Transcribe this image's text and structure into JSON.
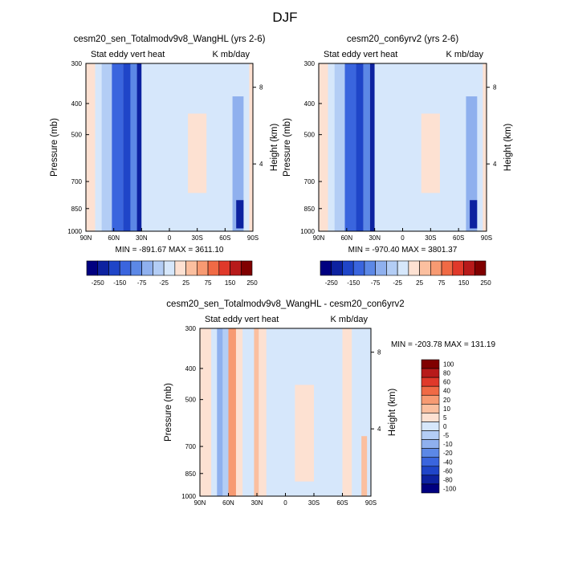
{
  "figure_title": "DJF",
  "chart_data": [
    {
      "type": "heatmap",
      "title": "cesm20_sen_Totalmodv9v8_WangHL (yrs 2-6)",
      "subtitle_left": "Stat eddy vert heat",
      "subtitle_right": "K mb/day",
      "ylabel": "Pressure (mb)",
      "ylabel_right": "Height (km)",
      "x_ticks": [
        "90N",
        "60N",
        "30N",
        "0",
        "30S",
        "60S",
        "90S"
      ],
      "y_ticks": [
        "300",
        "400",
        "500",
        "700",
        "850",
        "1000"
      ],
      "y_values": [
        300,
        400,
        500,
        700,
        850,
        1000
      ],
      "height_ticks": [
        "8",
        "4"
      ],
      "height_pressures": [
        356,
        617
      ],
      "stats": "MIN = -891.67  MAX = 3611.10",
      "colorbar_labels": [
        "-250",
        "-150",
        "-75",
        "-25",
        "25",
        "75",
        "150",
        "250"
      ],
      "columns": [
        {
          "lat": -90,
          "lat2": -80,
          "p_top": 300,
          "v": 1,
          "p_low": 1000
        },
        {
          "lat": -80,
          "lat2": -73,
          "p_top": 300,
          "v": -1
        },
        {
          "lat": -73,
          "lat2": -62,
          "p_top": 300,
          "v": -2
        },
        {
          "lat": -62,
          "lat2": -50,
          "p_top": 300,
          "v": -5
        },
        {
          "lat": -50,
          "lat2": -42,
          "p_top": 300,
          "v": -6
        },
        {
          "lat": -42,
          "lat2": -35,
          "p_top": 300,
          "v": -4
        },
        {
          "lat": -35,
          "lat2": -30,
          "p_top": 300,
          "v": -7
        },
        {
          "lat": -30,
          "lat2": -22,
          "p_top": 300,
          "v": -1
        },
        {
          "lat": -22,
          "lat2": 5,
          "p_top": 300,
          "v": -1
        },
        {
          "lat": 20,
          "lat2": 40,
          "p_top": 430,
          "v": 1,
          "p_low": 760
        },
        {
          "lat": 52,
          "lat2": 62,
          "p_top": 300,
          "v": -1
        },
        {
          "lat": 68,
          "lat2": 80,
          "p_top": 380,
          "v": -3
        },
        {
          "lat": 72,
          "lat2": 80,
          "p_top": 800,
          "v": -7,
          "p_low": 980
        },
        {
          "lat": 80,
          "lat2": 86,
          "p_top": 300,
          "v": -1
        },
        {
          "lat": 86,
          "lat2": 90,
          "p_top": 300,
          "v": 1
        }
      ]
    },
    {
      "type": "heatmap",
      "title": "cesm20_con6yrv2 (yrs 2-6)",
      "subtitle_left": "Stat eddy vert heat",
      "subtitle_right": "K mb/day",
      "ylabel": "Pressure (mb)",
      "ylabel_right": "Height (km)",
      "x_ticks": [
        "90N",
        "60N",
        "30N",
        "0",
        "30S",
        "60S",
        "90S"
      ],
      "y_ticks": [
        "300",
        "400",
        "500",
        "700",
        "850",
        "1000"
      ],
      "y_values": [
        300,
        400,
        500,
        700,
        850,
        1000
      ],
      "height_ticks": [
        "8",
        "4"
      ],
      "height_pressures": [
        356,
        617
      ],
      "stats": "MIN = -970.40  MAX = 3801.37",
      "colorbar_labels": [
        "-250",
        "-150",
        "-75",
        "-25",
        "25",
        "75",
        "150",
        "250"
      ],
      "columns": [
        {
          "lat": -90,
          "lat2": -80,
          "p_top": 300,
          "v": 1,
          "p_low": 1000
        },
        {
          "lat": -80,
          "lat2": -73,
          "p_top": 300,
          "v": -1
        },
        {
          "lat": -73,
          "lat2": -62,
          "p_top": 300,
          "v": -2
        },
        {
          "lat": -62,
          "lat2": -50,
          "p_top": 300,
          "v": -5
        },
        {
          "lat": -50,
          "lat2": -42,
          "p_top": 300,
          "v": -6
        },
        {
          "lat": -42,
          "lat2": -35,
          "p_top": 300,
          "v": -4
        },
        {
          "lat": -35,
          "lat2": -30,
          "p_top": 300,
          "v": -7
        },
        {
          "lat": -30,
          "lat2": -22,
          "p_top": 300,
          "v": -1
        },
        {
          "lat": -22,
          "lat2": 5,
          "p_top": 300,
          "v": -1
        },
        {
          "lat": 20,
          "lat2": 40,
          "p_top": 430,
          "v": 1,
          "p_low": 760
        },
        {
          "lat": 52,
          "lat2": 62,
          "p_top": 300,
          "v": -1
        },
        {
          "lat": 68,
          "lat2": 80,
          "p_top": 380,
          "v": -3
        },
        {
          "lat": 72,
          "lat2": 80,
          "p_top": 800,
          "v": -7,
          "p_low": 980
        },
        {
          "lat": 80,
          "lat2": 86,
          "p_top": 300,
          "v": -1
        },
        {
          "lat": 86,
          "lat2": 90,
          "p_top": 300,
          "v": 1
        }
      ]
    },
    {
      "type": "heatmap",
      "title": "cesm20_sen_Totalmodv9v8_WangHL - cesm20_con6yrv2",
      "subtitle_left": "Stat eddy vert heat",
      "subtitle_right": "K mb/day",
      "ylabel": "Pressure (mb)",
      "ylabel_right": "Height (km)",
      "x_ticks": [
        "90N",
        "60N",
        "30N",
        "0",
        "30S",
        "60S",
        "90S"
      ],
      "y_ticks": [
        "300",
        "400",
        "500",
        "700",
        "850",
        "1000"
      ],
      "y_values": [
        300,
        400,
        500,
        700,
        850,
        1000
      ],
      "height_ticks": [
        "8",
        "4"
      ],
      "height_pressures": [
        356,
        617
      ],
      "stats": "MIN = -203.78  MAX = 131.19",
      "colorbar_labels": [
        "100",
        "80",
        "60",
        "40",
        "20",
        "10",
        "5",
        "0",
        "-5",
        "-10",
        "-20",
        "-40",
        "-60",
        "-80",
        "-100"
      ],
      "columns": [
        {
          "lat": -90,
          "lat2": -78,
          "p_top": 300,
          "v": 1
        },
        {
          "lat": -78,
          "lat2": -72,
          "p_top": 300,
          "v": -1
        },
        {
          "lat": -72,
          "lat2": -66,
          "p_top": 300,
          "v": -3
        },
        {
          "lat": -66,
          "lat2": -60,
          "p_top": 300,
          "v": -2
        },
        {
          "lat": -60,
          "lat2": -52,
          "p_top": 300,
          "v": 3
        },
        {
          "lat": -52,
          "lat2": -45,
          "p_top": 300,
          "v": 1
        },
        {
          "lat": -45,
          "lat2": -36,
          "p_top": 300,
          "v": -1
        },
        {
          "lat": -33,
          "lat2": -28,
          "p_top": 300,
          "v": 2
        },
        {
          "lat": -28,
          "lat2": -20,
          "p_top": 300,
          "v": 1
        },
        {
          "lat": -20,
          "lat2": 10,
          "p_top": 300,
          "v": -1
        },
        {
          "lat": 10,
          "lat2": 30,
          "p_top": 450,
          "v": 1,
          "p_low": 900
        },
        {
          "lat": 60,
          "lat2": 70,
          "p_top": 300,
          "v": 1
        },
        {
          "lat": 70,
          "lat2": 80,
          "p_top": 300,
          "v": -1
        },
        {
          "lat": 80,
          "lat2": 86,
          "p_top": 650,
          "v": 2
        },
        {
          "lat": 86,
          "lat2": 90,
          "p_top": 300,
          "v": -1
        }
      ]
    }
  ],
  "colors": {
    "neg": [
      "#d6e7fb",
      "#b3cdf5",
      "#8fb0ee",
      "#5c88e6",
      "#3a65de",
      "#1f45c8",
      "#0d22a0",
      "#000080"
    ],
    "pos": [
      "#fde1d2",
      "#fbbf9f",
      "#f79a72",
      "#f06a45",
      "#e0392a",
      "#b71a1a",
      "#800000"
    ]
  }
}
